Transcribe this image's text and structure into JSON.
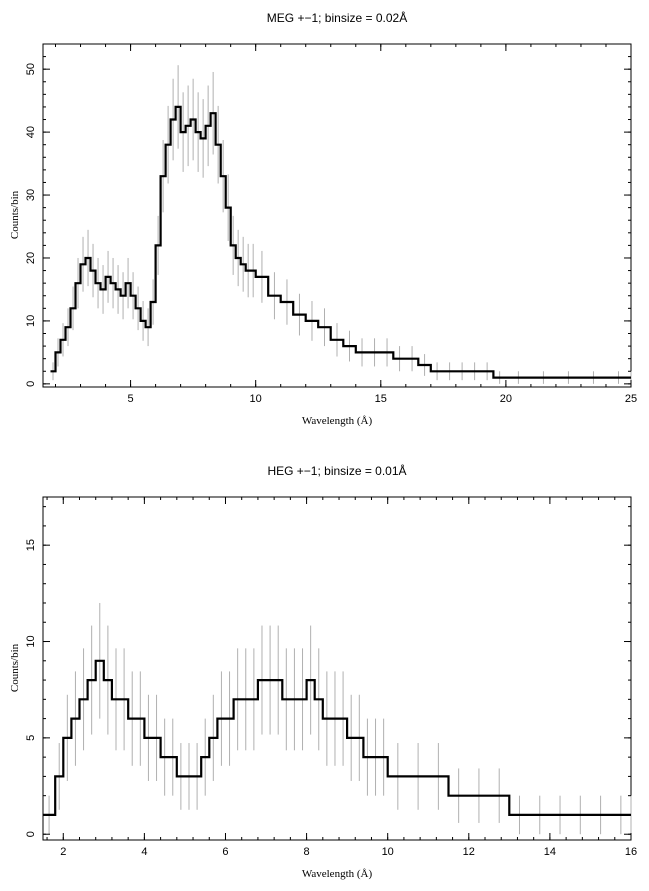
{
  "chart_data": [
    {
      "type": "line",
      "title": "MEG +−1; binsize = 0.02Å",
      "xlabel": "Wavelength (Å)",
      "ylabel": "Counts/bin",
      "xlim": [
        1.5,
        25
      ],
      "ylim": [
        -0.5,
        54
      ],
      "x_ticks": [
        "5",
        "10",
        "15",
        "20",
        "25"
      ],
      "y_ticks": [
        "0",
        "10",
        "20",
        "30",
        "40",
        "50"
      ],
      "grid": false,
      "legend": "none",
      "series_color": "#000000",
      "error_color": "#b0b0b0",
      "series": [
        {
          "x": [
            1.8,
            2.0,
            2.2,
            2.4,
            2.6,
            2.8,
            3.0,
            3.2,
            3.4,
            3.6,
            3.8,
            4.0,
            4.2,
            4.4,
            4.6,
            4.8,
            5.0,
            5.2,
            5.4,
            5.6,
            5.8,
            6.0,
            6.2,
            6.4,
            6.6,
            6.8,
            7.0,
            7.2,
            7.4,
            7.6,
            7.8,
            8.0,
            8.2,
            8.4,
            8.6,
            8.8,
            9.0,
            9.2,
            9.4,
            9.6,
            9.8,
            10.0,
            10.5,
            11.0,
            11.5,
            12.0,
            12.5,
            13.0,
            13.5,
            14.0,
            14.5,
            15.0,
            15.5,
            16.0,
            16.5,
            17.0,
            17.5,
            18.0,
            18.5,
            19.0,
            19.5,
            20.0,
            21.0,
            22.0,
            23.0,
            24.0,
            25.0
          ],
          "y": [
            2,
            5,
            7,
            9,
            12,
            16,
            19,
            20,
            18,
            16,
            15,
            17,
            16,
            15,
            14,
            16,
            14,
            12,
            10,
            9,
            13,
            22,
            33,
            38,
            42,
            44,
            40,
            41,
            42,
            40,
            39,
            41,
            43,
            38,
            33,
            28,
            22,
            20,
            19,
            18,
            18,
            17,
            14,
            13,
            11,
            10,
            9,
            7,
            6,
            5,
            5,
            5,
            4,
            4,
            3,
            2,
            2,
            2,
            2,
            2,
            1,
            1,
            1,
            1,
            1,
            1,
            1
          ]
        }
      ]
    },
    {
      "type": "line",
      "title": "HEG +−1; binsize = 0.01Å",
      "xlabel": "Wavelength (Å)",
      "ylabel": "Counts/bin",
      "xlim": [
        1.5,
        16
      ],
      "ylim": [
        -0.3,
        17.5
      ],
      "x_ticks": [
        "2",
        "4",
        "6",
        "8",
        "10",
        "12",
        "14",
        "16"
      ],
      "y_ticks": [
        "0",
        "5",
        "10",
        "15"
      ],
      "grid": false,
      "legend": "none",
      "series_color": "#000000",
      "error_color": "#b0b0b0",
      "series": [
        {
          "x": [
            1.5,
            1.8,
            2.0,
            2.2,
            2.4,
            2.6,
            2.8,
            3.0,
            3.2,
            3.4,
            3.6,
            3.8,
            4.0,
            4.2,
            4.4,
            4.6,
            4.8,
            5.0,
            5.2,
            5.4,
            5.6,
            5.8,
            6.0,
            6.2,
            6.4,
            6.6,
            6.8,
            7.0,
            7.2,
            7.4,
            7.6,
            7.8,
            8.0,
            8.2,
            8.4,
            8.6,
            8.8,
            9.0,
            9.2,
            9.4,
            9.6,
            9.8,
            10.0,
            10.5,
            11.0,
            11.5,
            12.0,
            12.5,
            13.0,
            13.5,
            14.0,
            14.5,
            15.0,
            15.5,
            16.0
          ],
          "y": [
            1,
            3,
            5,
            6,
            7,
            8,
            9,
            8,
            7,
            7,
            6,
            6,
            5,
            5,
            4,
            4,
            3,
            3,
            3,
            4,
            5,
            6,
            6,
            7,
            7,
            7,
            8,
            8,
            8,
            7,
            7,
            7,
            8,
            7,
            6,
            6,
            6,
            5,
            5,
            4,
            4,
            4,
            3,
            3,
            3,
            2,
            2,
            2,
            1,
            1,
            1,
            1,
            1,
            1,
            1
          ]
        }
      ]
    }
  ]
}
